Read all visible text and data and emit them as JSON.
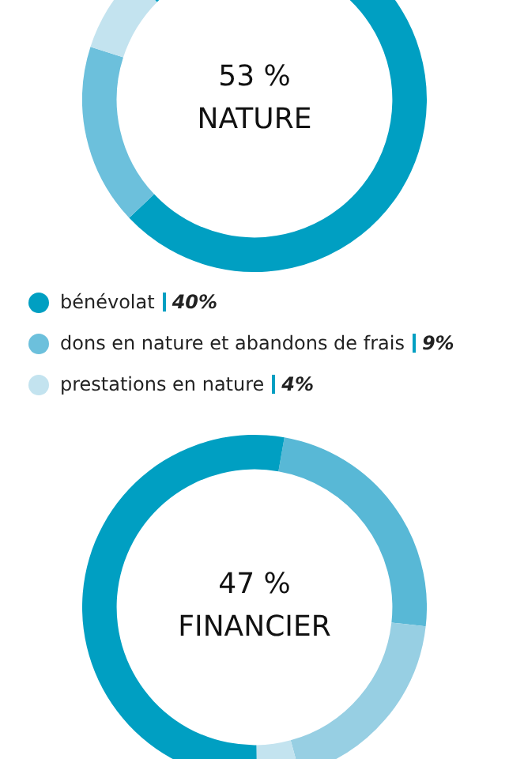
{
  "chart_data": [
    {
      "type": "donut",
      "annotations": [
        "53 %",
        "NATURE"
      ],
      "categories": [
        "bénévolat",
        "dons en nature et abandons de frais",
        "prestations en nature"
      ],
      "values": [
        40,
        9,
        4
      ],
      "value_labels": [
        "40%",
        "9%",
        "4%"
      ],
      "colors": [
        "#009fc2",
        "#6cc0dc",
        "#c3e3ef"
      ],
      "legend": "bottom"
    },
    {
      "type": "donut",
      "annotations": [
        "47 %",
        "FINANCIER"
      ],
      "categories": [
        null,
        null,
        null,
        null
      ],
      "values": [
        24,
        19,
        4,
        53
      ],
      "colors": [
        "#58b8d6",
        "#97cfe3",
        "#c3e3ef",
        "#009fc2"
      ]
    }
  ]
}
